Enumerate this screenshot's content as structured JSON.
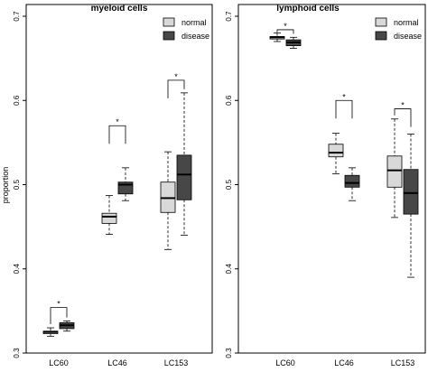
{
  "figure": {
    "ylabel": "proportion"
  },
  "colors": {
    "normal": "#d9d9d9",
    "disease": "#474747",
    "stroke": "#000000"
  },
  "chart_data": [
    {
      "type": "box",
      "title": "myeloid cells",
      "xlabel": "",
      "ylabel": "proportion",
      "ylim": [
        0.3,
        0.7
      ],
      "yticks": [
        "0.3",
        "0.4",
        "0.5",
        "0.6",
        "0.7"
      ],
      "categories": [
        "LC60",
        "LC46",
        "LC153"
      ],
      "legend": {
        "position": "top-right",
        "entries": [
          "normal",
          "disease"
        ]
      },
      "series": [
        {
          "name": "normal",
          "boxes": [
            {
              "min": 0.32,
              "q1": 0.323,
              "median": 0.325,
              "q3": 0.326,
              "max": 0.33
            },
            {
              "min": 0.441,
              "q1": 0.454,
              "median": 0.462,
              "q3": 0.466,
              "max": 0.487
            },
            {
              "min": 0.423,
              "q1": 0.467,
              "median": 0.484,
              "q3": 0.503,
              "max": 0.539
            }
          ]
        },
        {
          "name": "disease",
          "boxes": [
            {
              "min": 0.326,
              "q1": 0.329,
              "median": 0.333,
              "q3": 0.336,
              "max": 0.338
            },
            {
              "min": 0.481,
              "q1": 0.489,
              "median": 0.5,
              "q3": 0.503,
              "max": 0.52
            },
            {
              "min": 0.44,
              "q1": 0.482,
              "median": 0.512,
              "q3": 0.535,
              "max": 0.609
            }
          ]
        }
      ],
      "significance": [
        {
          "category": "LC60",
          "label": "*",
          "y": 0.354
        },
        {
          "category": "LC46",
          "label": "*",
          "y": 0.57
        },
        {
          "category": "LC153",
          "label": "*",
          "y": 0.624
        }
      ]
    },
    {
      "type": "box",
      "title": "lymphoid cells",
      "xlabel": "",
      "ylabel": "",
      "ylim": [
        0.3,
        0.7
      ],
      "yticks": [
        "0.3",
        "0.4",
        "0.5",
        "0.6",
        "0.7"
      ],
      "categories": [
        "LC60",
        "LC46",
        "LC153"
      ],
      "legend": {
        "position": "top-right",
        "entries": [
          "normal",
          "disease"
        ]
      },
      "series": [
        {
          "name": "normal",
          "boxes": [
            {
              "min": 0.67,
              "q1": 0.673,
              "median": 0.675,
              "q3": 0.676,
              "max": 0.68
            },
            {
              "min": 0.513,
              "q1": 0.533,
              "median": 0.538,
              "q3": 0.548,
              "max": 0.561
            },
            {
              "min": 0.461,
              "q1": 0.497,
              "median": 0.517,
              "q3": 0.534,
              "max": 0.578
            }
          ]
        },
        {
          "name": "disease",
          "boxes": [
            {
              "min": 0.662,
              "q1": 0.665,
              "median": 0.669,
              "q3": 0.672,
              "max": 0.675
            },
            {
              "min": 0.481,
              "q1": 0.497,
              "median": 0.502,
              "q3": 0.511,
              "max": 0.52
            },
            {
              "min": 0.39,
              "q1": 0.465,
              "median": 0.49,
              "q3": 0.518,
              "max": 0.56
            }
          ]
        }
      ],
      "significance": [
        {
          "category": "LC60",
          "label": "*",
          "y": 0.684
        },
        {
          "category": "LC46",
          "label": "*",
          "y": 0.6
        },
        {
          "category": "LC153",
          "label": "*",
          "y": 0.59
        }
      ]
    }
  ]
}
